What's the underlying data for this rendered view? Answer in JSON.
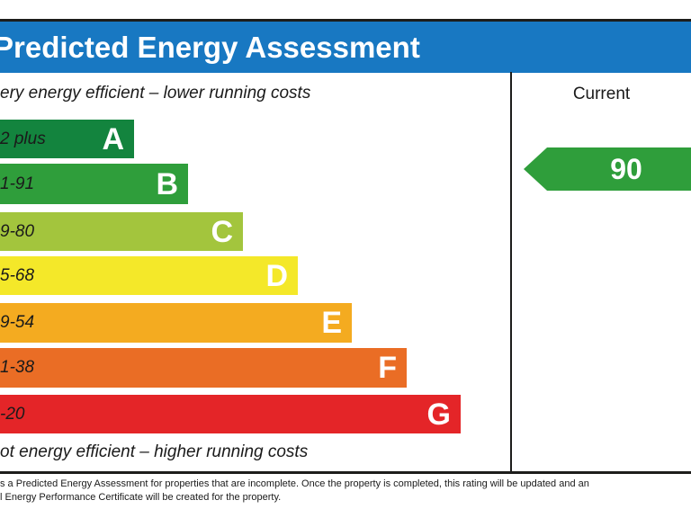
{
  "header": {
    "title": "Predicted Energy Assessment",
    "bg_color": "#1878c2"
  },
  "chart_data": {
    "type": "bar",
    "title": "Predicted Energy Assessment",
    "top_label": "ery energy efficient – lower running costs",
    "bottom_label": "ot energy efficient – higher running costs",
    "column_header": "Current",
    "current_rating": {
      "value": "90",
      "band": "B",
      "color": "#2f9e3b"
    },
    "bands": [
      {
        "letter": "A",
        "range": "2 plus",
        "color": "#13843e",
        "relative_width": 149
      },
      {
        "letter": "B",
        "range": "1-91",
        "color": "#2f9e3b",
        "relative_width": 209
      },
      {
        "letter": "C",
        "range": "9-80",
        "color": "#a3c53d",
        "relative_width": 270
      },
      {
        "letter": "D",
        "range": "5-68",
        "color": "#f4e829",
        "relative_width": 331
      },
      {
        "letter": "E",
        "range": "9-54",
        "color": "#f4ab20",
        "relative_width": 391
      },
      {
        "letter": "F",
        "range": "1-38",
        "color": "#ea6d25",
        "relative_width": 452
      },
      {
        "letter": "G",
        "range": "-20",
        "color": "#e42528",
        "relative_width": 512
      }
    ],
    "layout_hints": {
      "legend": "none",
      "grid": false,
      "bands_grow_downward": true
    }
  },
  "footer": {
    "line1": "s a Predicted Energy Assessment for properties that are incomplete. Once the property is completed, this rating will be updated and an",
    "line2": "l Energy Performance Certificate will be created for the property."
  }
}
